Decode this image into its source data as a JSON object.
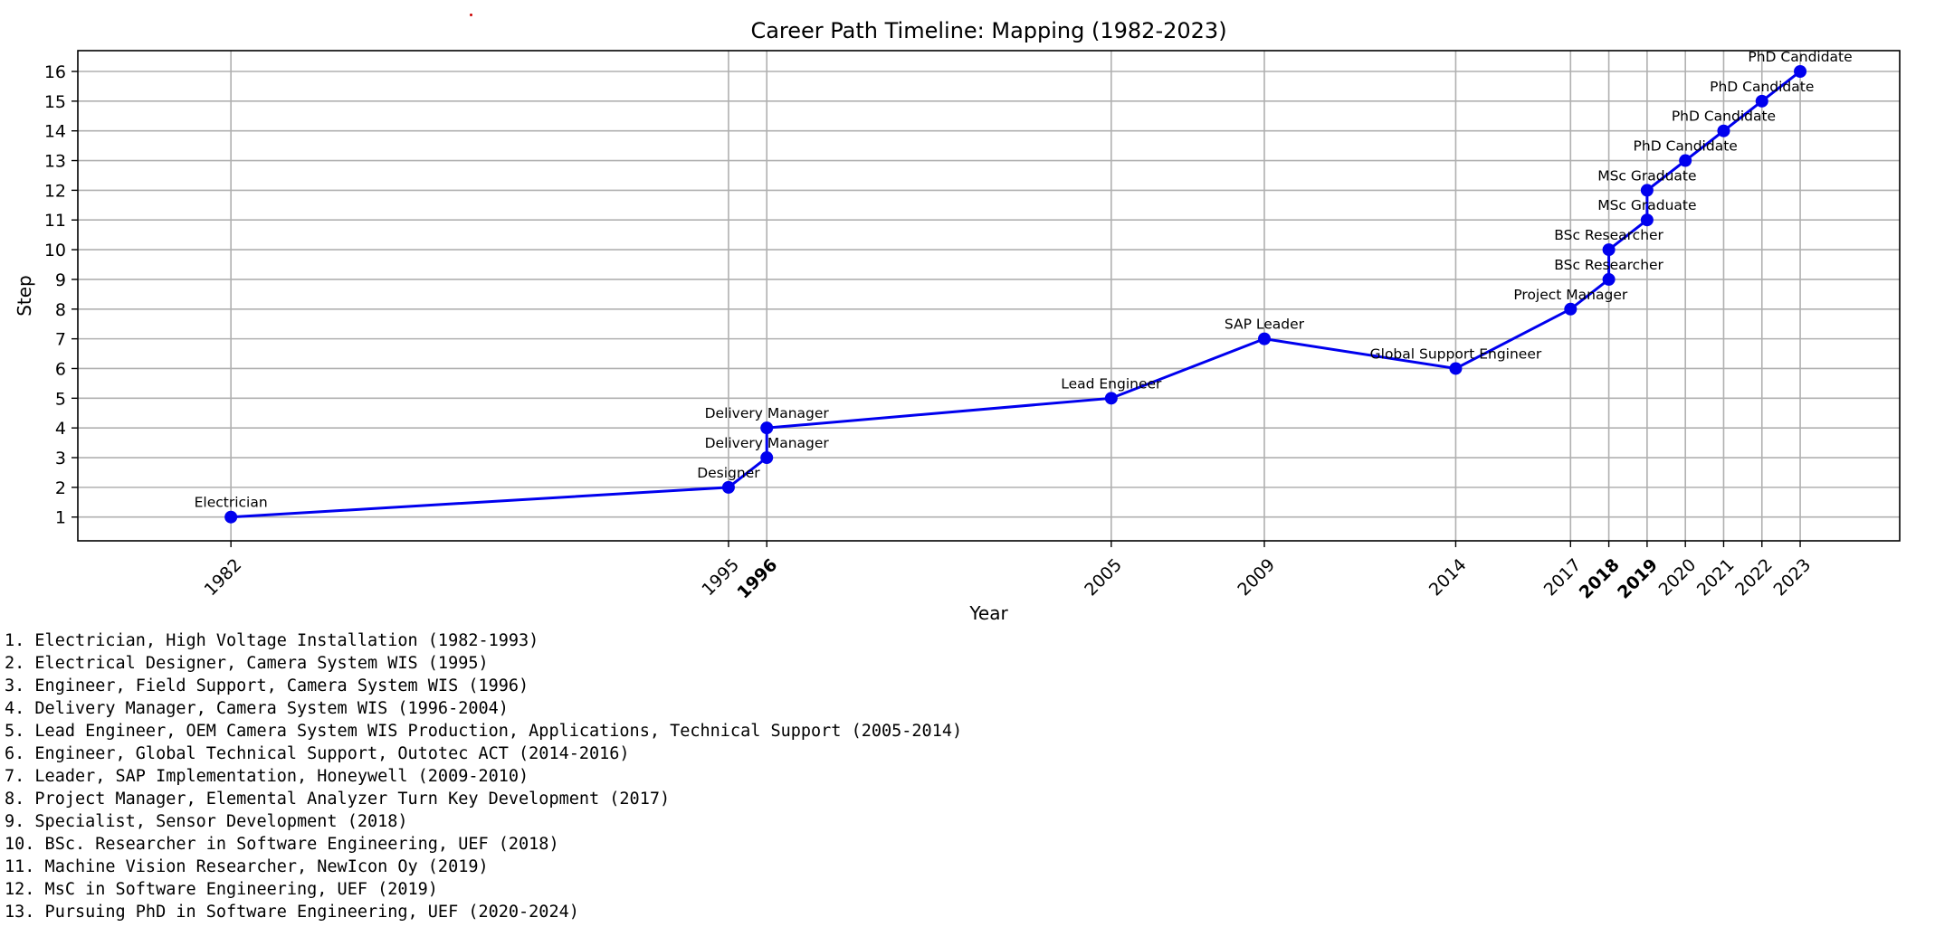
{
  "chart_data": {
    "type": "line",
    "title": "Career Path Timeline: Mapping (1982-2023)",
    "xlabel": "Year",
    "ylabel": "Step",
    "xlim": [
      1978,
      2025.6
    ],
    "ylim": [
      0.2,
      16.7
    ],
    "yticks": [
      1,
      2,
      3,
      4,
      5,
      6,
      7,
      8,
      9,
      10,
      11,
      12,
      13,
      14,
      15,
      16
    ],
    "xticks": [
      {
        "value": 1982,
        "label": "1982",
        "bold": false
      },
      {
        "value": 1995,
        "label": "1995",
        "bold": false
      },
      {
        "value": 1996,
        "label": "1996",
        "bold": true
      },
      {
        "value": 2005,
        "label": "2005",
        "bold": false
      },
      {
        "value": 2009,
        "label": "2009",
        "bold": false
      },
      {
        "value": 2014,
        "label": "2014",
        "bold": false
      },
      {
        "value": 2017,
        "label": "2017",
        "bold": false
      },
      {
        "value": 2018,
        "label": "2018",
        "bold": true
      },
      {
        "value": 2019,
        "label": "2019",
        "bold": true
      },
      {
        "value": 2020,
        "label": "2020",
        "bold": false
      },
      {
        "value": 2021,
        "label": "2021",
        "bold": false
      },
      {
        "value": 2022,
        "label": "2022",
        "bold": false
      },
      {
        "value": 2023,
        "label": "2023",
        "bold": false
      }
    ],
    "grid": true,
    "series": [
      {
        "color": "#0000ee",
        "points": [
          {
            "x": 1982,
            "y": 1,
            "label": "Electrician"
          },
          {
            "x": 1995,
            "y": 2,
            "label": "Designer"
          },
          {
            "x": 1996,
            "y": 3,
            "label": "Delivery Manager"
          },
          {
            "x": 1996,
            "y": 4,
            "label": "Delivery Manager"
          },
          {
            "x": 2005,
            "y": 5,
            "label": "Lead Engineer"
          },
          {
            "x": 2009,
            "y": 7,
            "label": "SAP Leader"
          },
          {
            "x": 2014,
            "y": 6,
            "label": "Global Support Engineer"
          },
          {
            "x": 2017,
            "y": 8,
            "label": "Project Manager"
          },
          {
            "x": 2018,
            "y": 9,
            "label": "BSc Researcher"
          },
          {
            "x": 2018,
            "y": 10,
            "label": "BSc Researcher"
          },
          {
            "x": 2019,
            "y": 11,
            "label": "MSc Graduate"
          },
          {
            "x": 2019,
            "y": 12,
            "label": "MSc Graduate"
          },
          {
            "x": 2020,
            "y": 13,
            "label": "PhD Candidate"
          },
          {
            "x": 2021,
            "y": 14,
            "label": "PhD Candidate"
          },
          {
            "x": 2022,
            "y": 15,
            "label": "PhD Candidate"
          },
          {
            "x": 2023,
            "y": 16,
            "label": "PhD Candidate"
          }
        ]
      }
    ]
  },
  "career_list": [
    "1. Electrician, High Voltage Installation (1982-1993)",
    "2. Electrical Designer, Camera System WIS (1995)",
    "3. Engineer, Field Support, Camera System WIS (1996)",
    "4. Delivery Manager, Camera System WIS (1996-2004)",
    "5. Lead Engineer, OEM Camera System WIS Production, Applications, Technical Support (2005-2014)",
    "6. Engineer, Global Technical Support, Outotec ACT (2014-2016)",
    "7. Leader, SAP Implementation, Honeywell (2009-2010)",
    "8. Project Manager, Elemental Analyzer Turn Key Development (2017)",
    "9. Specialist, Sensor Development (2018)",
    "10. BSc. Researcher in Software Engineering, UEF (2018)",
    "11. Machine Vision Researcher, NewIcon Oy (2019)",
    "12. MsC in Software Engineering, UEF (2019)",
    "13. Pursuing PhD in Software Engineering, UEF (2020-2024)"
  ]
}
